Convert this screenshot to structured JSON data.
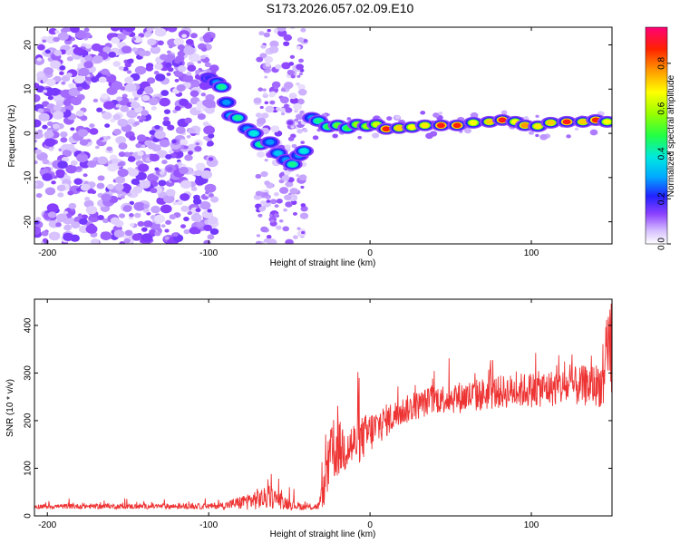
{
  "title": "S173.2026.057.02.09.E10",
  "chart_data": [
    {
      "type": "heatmap",
      "xlabel": "Height of straight line (km)",
      "ylabel": "Frequency (Hz)",
      "xlim": [
        -208,
        150
      ],
      "ylim": [
        -25,
        24
      ],
      "xticks": [
        "-200",
        "-100",
        "0",
        "100"
      ],
      "xtick_values": [
        -200,
        -100,
        0,
        100
      ],
      "yticks": [
        "-20",
        "-10",
        "0",
        "10",
        "20"
      ],
      "ytick_values": [
        -20,
        -10,
        0,
        10,
        20
      ],
      "colorbar": {
        "label": "Normalized spectral amplitude",
        "ticks": [
          "0.0",
          "0.2",
          "0.4",
          "0.6",
          "0.8"
        ],
        "tick_values": [
          0.0,
          0.2,
          0.4,
          0.6,
          0.8
        ],
        "range": [
          0.0,
          0.96
        ]
      },
      "ridge": [
        {
          "x": -100,
          "y": 12.5,
          "a": 0.2
        },
        {
          "x": -95,
          "y": 11.5,
          "a": 0.3
        },
        {
          "x": -92,
          "y": 10.5,
          "a": 0.45
        },
        {
          "x": -89,
          "y": 7,
          "a": 0.3
        },
        {
          "x": -86,
          "y": 4,
          "a": 0.35
        },
        {
          "x": -82,
          "y": 3.5,
          "a": 0.45
        },
        {
          "x": -76,
          "y": 1,
          "a": 0.3
        },
        {
          "x": -72,
          "y": 0,
          "a": 0.4
        },
        {
          "x": -68,
          "y": -2.5,
          "a": 0.45
        },
        {
          "x": -62,
          "y": -2,
          "a": 0.3
        },
        {
          "x": -57,
          "y": -4.5,
          "a": 0.35
        },
        {
          "x": -52,
          "y": -6,
          "a": 0.3
        },
        {
          "x": -48,
          "y": -7,
          "a": 0.45
        },
        {
          "x": -44,
          "y": -5,
          "a": 0.3
        },
        {
          "x": -41,
          "y": -4,
          "a": 0.4
        },
        {
          "x": -36,
          "y": 3.5,
          "a": 0.3
        },
        {
          "x": -32,
          "y": 2.8,
          "a": 0.45
        },
        {
          "x": -26,
          "y": 1.5,
          "a": 0.5
        },
        {
          "x": -20,
          "y": 1.8,
          "a": 0.55
        },
        {
          "x": -14,
          "y": 1.2,
          "a": 0.5
        },
        {
          "x": -8,
          "y": 2.0,
          "a": 0.6
        },
        {
          "x": -2,
          "y": 1.6,
          "a": 0.6
        },
        {
          "x": 4,
          "y": 2.0,
          "a": 0.65
        },
        {
          "x": 10,
          "y": 1.0,
          "a": 0.9
        },
        {
          "x": 18,
          "y": 1.2,
          "a": 0.75
        },
        {
          "x": 26,
          "y": 1.4,
          "a": 0.7
        },
        {
          "x": 34,
          "y": 1.8,
          "a": 0.72
        },
        {
          "x": 44,
          "y": 1.8,
          "a": 0.92
        },
        {
          "x": 54,
          "y": 1.8,
          "a": 0.9
        },
        {
          "x": 64,
          "y": 2.4,
          "a": 0.7
        },
        {
          "x": 74,
          "y": 2.6,
          "a": 0.75
        },
        {
          "x": 82,
          "y": 3.0,
          "a": 0.92
        },
        {
          "x": 90,
          "y": 2.6,
          "a": 0.7
        },
        {
          "x": 96,
          "y": 1.8,
          "a": 0.8
        },
        {
          "x": 104,
          "y": 1.6,
          "a": 0.72
        },
        {
          "x": 112,
          "y": 2.4,
          "a": 0.75
        },
        {
          "x": 122,
          "y": 2.6,
          "a": 0.92
        },
        {
          "x": 132,
          "y": 2.6,
          "a": 0.75
        },
        {
          "x": 140,
          "y": 3.0,
          "a": 0.9
        },
        {
          "x": 147,
          "y": 2.6,
          "a": 0.7
        }
      ]
    },
    {
      "type": "line",
      "xlabel": "Height of straight line (km)",
      "ylabel": "SNR (10 * v/v)",
      "xlim": [
        -208,
        150
      ],
      "ylim": [
        0,
        455
      ],
      "xticks": [
        "-200",
        "-100",
        "0",
        "100"
      ],
      "xtick_values": [
        -200,
        -100,
        0,
        100
      ],
      "yticks": [
        "0",
        "100",
        "200",
        "300",
        "400"
      ],
      "ytick_values": [
        0,
        100,
        200,
        300,
        400
      ],
      "color": "#ee3333",
      "envelope": {
        "x": [
          -208,
          -100,
          -90,
          -80,
          -70,
          -60,
          -50,
          -40,
          -32,
          -28,
          -25,
          -20,
          -10,
          0,
          10,
          20,
          40,
          60,
          80,
          100,
          120,
          140,
          150
        ],
        "baseline": [
          20,
          20,
          22,
          28,
          35,
          38,
          25,
          18,
          20,
          60,
          120,
          140,
          150,
          175,
          200,
          220,
          245,
          250,
          260,
          265,
          270,
          275,
          280
        ],
        "spread": [
          10,
          12,
          15,
          30,
          45,
          45,
          25,
          12,
          15,
          80,
          130,
          120,
          100,
          90,
          70,
          60,
          60,
          70,
          70,
          75,
          80,
          90,
          120
        ]
      }
    }
  ]
}
